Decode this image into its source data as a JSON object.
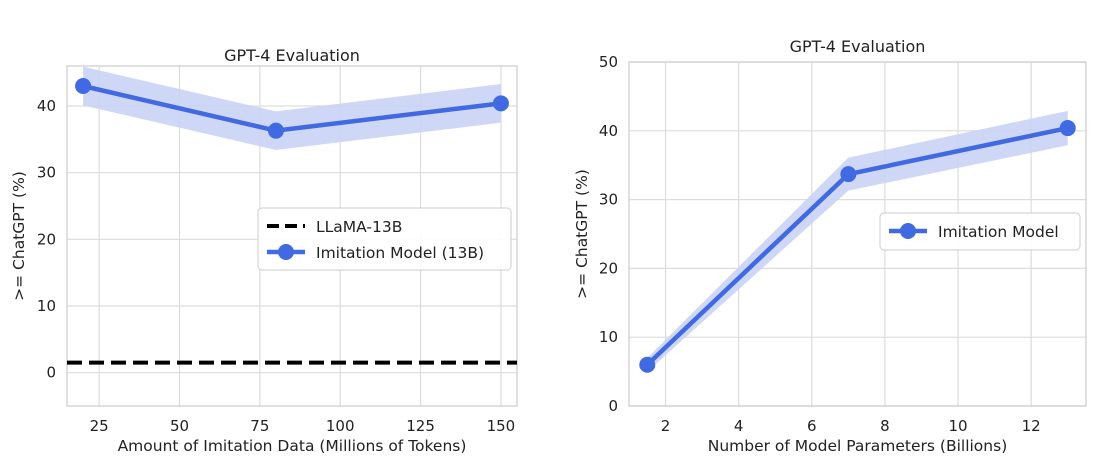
{
  "chart_data": [
    {
      "type": "line",
      "title": "GPT-4 Evaluation",
      "xlabel": "Amount of Imitation Data (Millions of Tokens)",
      "ylabel": ">= ChatGPT (%)",
      "xlim": [
        15,
        155
      ],
      "ylim": [
        -5,
        46
      ],
      "xticks": [
        25,
        50,
        75,
        100,
        125,
        150
      ],
      "yticks": [
        0,
        10,
        20,
        30,
        40
      ],
      "grid": true,
      "legend_position": "center-right",
      "series": [
        {
          "name": "LLaMA-13B",
          "style": "dashed",
          "color": "#000000",
          "constant": 1.5
        },
        {
          "name": "Imitation Model (13B)",
          "style": "solid-markers",
          "color": "#4169E1",
          "band_color": "#c9d3f5",
          "x": [
            20,
            80,
            150
          ],
          "y": [
            43.0,
            36.3,
            40.4
          ],
          "lower": [
            40.1,
            33.4,
            37.5
          ],
          "upper": [
            45.9,
            39.2,
            43.3
          ]
        }
      ]
    },
    {
      "type": "line",
      "title": "GPT-4 Evaluation",
      "xlabel": "Number of Model Parameters (Billions)",
      "ylabel": ">= ChatGPT (%)",
      "xlim": [
        1.0,
        13.5
      ],
      "ylim": [
        0,
        50
      ],
      "xticks": [
        2,
        4,
        6,
        8,
        10,
        12
      ],
      "yticks": [
        0,
        10,
        20,
        30,
        40,
        50
      ],
      "grid": true,
      "legend_position": "center-right",
      "series": [
        {
          "name": "Imitation Model",
          "style": "solid-markers",
          "color": "#4169E1",
          "band_color": "#c9d3f5",
          "x": [
            1.5,
            7,
            13
          ],
          "y": [
            6.0,
            33.7,
            40.4
          ],
          "lower": [
            5.0,
            31.3,
            37.9
          ],
          "upper": [
            7.0,
            36.1,
            42.9
          ]
        }
      ]
    }
  ]
}
